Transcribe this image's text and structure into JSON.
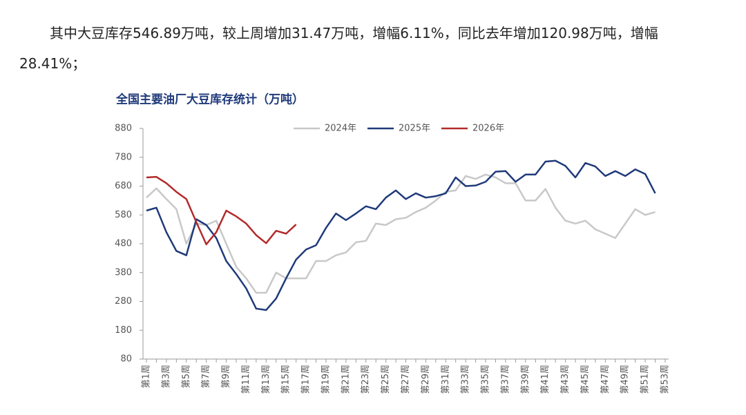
{
  "paragraph": "其中大豆库存546.89万吨，较上周增加31.47万吨，增幅6.11%，同比去年增加120.98万吨，增幅28.41%；",
  "chart_data": {
    "type": "line",
    "title": "全国主要油厂大豆库存统计（万吨）",
    "legend": "top",
    "categories": [
      "第1周",
      null,
      "第3周",
      null,
      "第5周",
      null,
      "第7周",
      null,
      "第9周",
      null,
      "第11周",
      null,
      "第13周",
      null,
      "第15周",
      null,
      "第17周",
      null,
      "第19周",
      null,
      "第21周",
      null,
      "第23周",
      null,
      "第25周",
      null,
      "第27周",
      null,
      "第29周",
      null,
      "第31周",
      null,
      "第33周",
      null,
      "第35周",
      null,
      "第37周",
      null,
      "第39周",
      null,
      "第41周",
      null,
      "第43周",
      null,
      "第45周",
      null,
      "第47周",
      null,
      "第49周",
      null,
      "第51周",
      null,
      "第53周"
    ],
    "ylim": [
      80,
      880
    ],
    "yticks": [
      80,
      180,
      280,
      380,
      480,
      580,
      680,
      780,
      880
    ],
    "series": [
      {
        "name": "2024年",
        "color": "#c8c8c8",
        "values": [
          640,
          672,
          635,
          600,
          480,
          550,
          545,
          560,
          480,
          400,
          360,
          310,
          310,
          380,
          360,
          360,
          360,
          420,
          420,
          440,
          450,
          485,
          490,
          550,
          545,
          565,
          570,
          590,
          605,
          630,
          660,
          665,
          715,
          705,
          720,
          710,
          690,
          690,
          630,
          630,
          670,
          605,
          560,
          550,
          560,
          530,
          515,
          500,
          550,
          600,
          580,
          590,
          null
        ]
      },
      {
        "name": "2025年",
        "color": "#1f3a7a",
        "values": [
          595,
          605,
          520,
          455,
          440,
          565,
          545,
          500,
          420,
          375,
          325,
          255,
          250,
          290,
          360,
          425,
          460,
          475,
          535,
          585,
          562,
          585,
          610,
          600,
          640,
          665,
          635,
          655,
          640,
          645,
          655,
          710,
          680,
          682,
          695,
          730,
          732,
          695,
          720,
          720,
          765,
          768,
          750,
          710,
          760,
          748,
          715,
          732,
          715,
          738,
          722,
          655,
          null
        ]
      },
      {
        "name": "2026年",
        "color": "#b22a2a",
        "values": [
          710,
          712,
          690,
          660,
          635,
          555,
          478,
          520,
          595,
          575,
          550,
          510,
          482,
          525,
          515,
          546.89,
          null,
          null,
          null,
          null,
          null,
          null,
          null,
          null,
          null,
          null,
          null,
          null,
          null,
          null,
          null,
          null,
          null,
          null,
          null,
          null,
          null,
          null,
          null,
          null,
          null,
          null,
          null,
          null,
          null,
          null,
          null,
          null,
          null,
          null,
          null,
          null,
          null
        ]
      }
    ]
  }
}
